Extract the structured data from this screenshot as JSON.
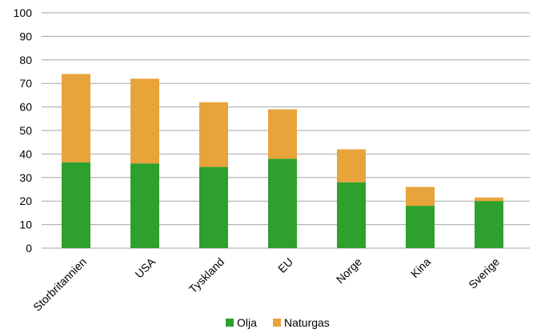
{
  "chart_data": {
    "type": "bar",
    "stacked": true,
    "categories": [
      "Storbritannien",
      "USA",
      "Tyskland",
      "EU",
      "Norge",
      "Kina",
      "Sverige"
    ],
    "series": [
      {
        "name": "Olja",
        "color": "#2ea02e",
        "values": [
          36.5,
          36,
          34.5,
          38,
          28,
          18,
          20
        ]
      },
      {
        "name": "Naturgas",
        "color": "#e8a33a",
        "values": [
          37.5,
          36,
          27.5,
          21,
          14,
          8,
          1.5
        ]
      }
    ],
    "ylim": [
      0,
      100
    ],
    "yticks": [
      0,
      10,
      20,
      30,
      40,
      50,
      60,
      70,
      80,
      90,
      100
    ],
    "grid": true,
    "legend_position": "bottom"
  }
}
